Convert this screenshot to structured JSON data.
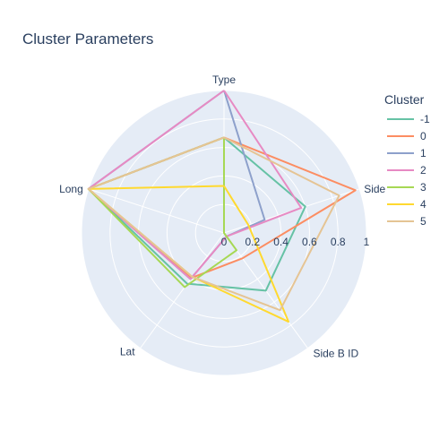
{
  "chart_data": {
    "type": "radar",
    "title": "Cluster Parameters",
    "axes": [
      "Type",
      "Side A ID",
      "Side B ID",
      "Lat",
      "Long"
    ],
    "axis_display_labels": [
      "Type",
      "Side",
      "Side B ID",
      "Lat",
      "Long"
    ],
    "radial_range": [
      0,
      1
    ],
    "radial_ticks": [
      "0",
      "0.2",
      "0.4",
      "0.6",
      "0.8",
      "1"
    ],
    "legend_title": "Cluster",
    "legend_position": "top-right",
    "grid": true,
    "series": [
      {
        "name": "-1",
        "color": "#66c2a5",
        "values": [
          0.67,
          0.6,
          0.5,
          0.44,
          1.0
        ]
      },
      {
        "name": "0",
        "color": "#fc8d62",
        "values": [
          0.67,
          0.97,
          0.22,
          0.39,
          1.0
        ]
      },
      {
        "name": "1",
        "color": "#8da0cb",
        "values": [
          1.0,
          0.3,
          0.03,
          0.4,
          1.0
        ]
      },
      {
        "name": "2",
        "color": "#e78ac3",
        "values": [
          1.0,
          0.57,
          0.03,
          0.4,
          1.0
        ]
      },
      {
        "name": "3",
        "color": "#a6d854",
        "values": [
          0.67,
          0.0,
          0.15,
          0.47,
          1.0
        ]
      },
      {
        "name": "4",
        "color": "#ffd92f",
        "values": [
          0.33,
          0.18,
          0.77,
          0.38,
          1.0
        ]
      },
      {
        "name": "5",
        "color": "#e5c494",
        "values": [
          0.67,
          0.85,
          0.67,
          0.38,
          1.0
        ]
      }
    ]
  }
}
